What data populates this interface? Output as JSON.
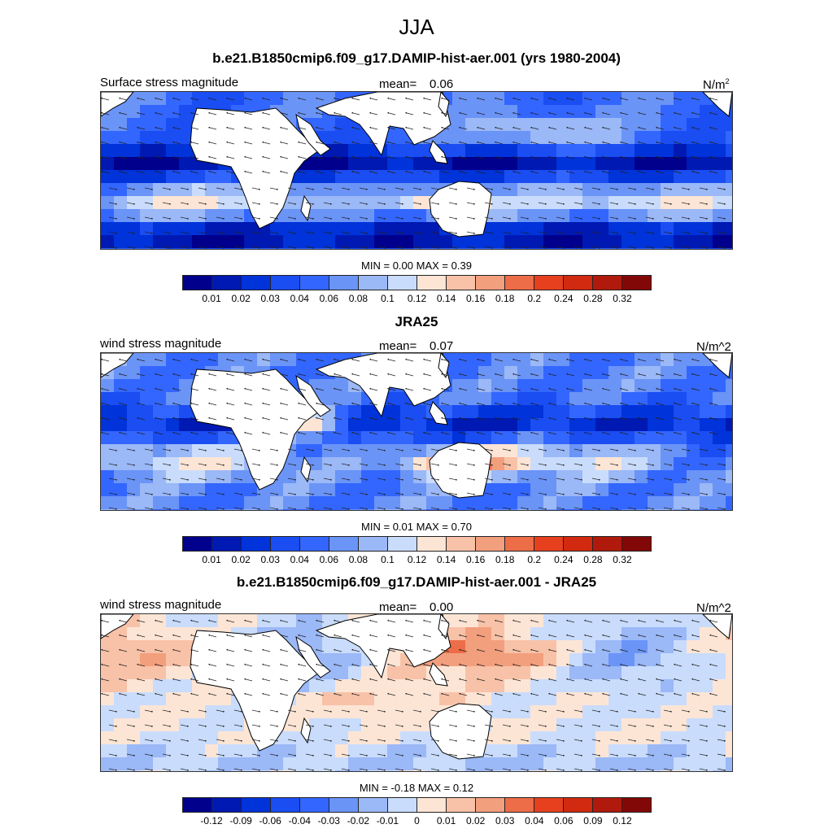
{
  "title": "JJA",
  "colors": [
    "#00008c",
    "#0019b2",
    "#0033d9",
    "#1a4df2",
    "#3366ff",
    "#6b94f7",
    "#9bb8f7",
    "#c9dcfc",
    "#fde5d5",
    "#f8c2a8",
    "#f29f7e",
    "#ec6d48",
    "#e6401f",
    "#d12a10",
    "#b01a0d",
    "#820808"
  ],
  "panels": [
    {
      "title": "b.e21.B1850cmip6.f09_g17.DAMIP-hist-aer.001 (yrs 1980-2004)",
      "left_label": "Surface stress magnitude",
      "mean_label": "mean=",
      "mean_value": "0.06",
      "units": "N/m",
      "units_sup": "2",
      "min_label": "MIN =",
      "min_value": "0.00",
      "max_label": "MAX =",
      "max_value": "0.39",
      "ticks": [
        "0.01",
        "0.02",
        "0.03",
        "0.04",
        "0.06",
        "0.08",
        "0.1",
        "0.12",
        "0.14",
        "0.16",
        "0.18",
        "0.2",
        "0.24",
        "0.28",
        "0.32"
      ],
      "field": "model"
    },
    {
      "title": "JRA25",
      "left_label": "wind stress magnitude",
      "mean_label": "mean=",
      "mean_value": "0.07",
      "units": "N/m^2",
      "units_sup": "",
      "min_label": "MIN =",
      "min_value": "0.01",
      "max_label": "MAX =",
      "max_value": "0.70",
      "ticks": [
        "0.01",
        "0.02",
        "0.03",
        "0.04",
        "0.06",
        "0.08",
        "0.1",
        "0.12",
        "0.14",
        "0.16",
        "0.18",
        "0.2",
        "0.24",
        "0.28",
        "0.32"
      ],
      "field": "obs"
    },
    {
      "title": "b.e21.B1850cmip6.f09_g17.DAMIP-hist-aer.001 - JRA25",
      "left_label": "wind stress magnitude",
      "mean_label": "mean=",
      "mean_value": "0.00",
      "units": "N/m^2",
      "units_sup": "",
      "min_label": "MIN =",
      "min_value": "-0.18",
      "max_label": "MAX =",
      "max_value": "0.12",
      "ticks": [
        "-0.12",
        "-0.09",
        "-0.06",
        "-0.04",
        "-0.03",
        "-0.02",
        "-0.01",
        "0",
        "0.01",
        "0.02",
        "0.03",
        "0.04",
        "0.06",
        "0.09",
        "0.12"
      ],
      "field": "diff"
    }
  ]
}
